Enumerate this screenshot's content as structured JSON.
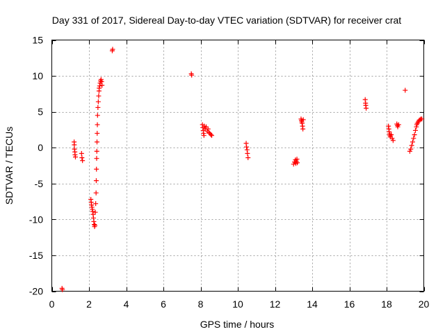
{
  "chart_data": {
    "type": "scatter",
    "title": "Day 331 of 2017, Sidereal Day-to-day VTEC variation (SDTVAR) for receiver crat",
    "xlabel": "GPS time / hours",
    "ylabel": "SDTVAR / TECUs",
    "xlim": [
      0,
      20
    ],
    "ylim": [
      -20,
      15
    ],
    "xticks": [
      0,
      2,
      4,
      6,
      8,
      10,
      12,
      14,
      16,
      18,
      20
    ],
    "yticks": [
      -20,
      -15,
      -10,
      -5,
      0,
      5,
      10,
      15
    ],
    "xtick_labels": [
      "0",
      "2",
      "4",
      "6",
      "8",
      "10",
      "12",
      "14",
      "16",
      "18",
      "20"
    ],
    "ytick_labels": [
      "-20",
      "-15",
      "-10",
      "-5",
      "0",
      "5",
      "10",
      "15"
    ],
    "grid": true,
    "marker": "plus",
    "color": "#ff0000",
    "series": [
      {
        "name": "SDTVAR",
        "points": [
          [
            0.55,
            -19.6
          ],
          [
            0.57,
            -19.8
          ],
          [
            1.2,
            0.8
          ],
          [
            1.21,
            0.4
          ],
          [
            1.22,
            -0.2
          ],
          [
            1.24,
            -0.6
          ],
          [
            1.25,
            -1.0
          ],
          [
            1.27,
            -1.3
          ],
          [
            1.6,
            -0.8
          ],
          [
            1.62,
            -1.4
          ],
          [
            1.65,
            -1.8
          ],
          [
            2.1,
            -7.2
          ],
          [
            2.12,
            -7.6
          ],
          [
            2.14,
            -8.0
          ],
          [
            2.16,
            -8.3
          ],
          [
            2.18,
            -8.6
          ],
          [
            2.2,
            -8.9
          ],
          [
            2.22,
            -9.3
          ],
          [
            2.24,
            -9.8
          ],
          [
            2.26,
            -10.3
          ],
          [
            2.28,
            -10.7
          ],
          [
            2.3,
            -11.0
          ],
          [
            2.32,
            -10.8
          ],
          [
            2.34,
            -9.0
          ],
          [
            2.36,
            -7.8
          ],
          [
            2.38,
            -6.3
          ],
          [
            2.39,
            -4.6
          ],
          [
            2.4,
            -3.0
          ],
          [
            2.41,
            -1.5
          ],
          [
            2.42,
            -0.5
          ],
          [
            2.43,
            0.8
          ],
          [
            2.44,
            2.0
          ],
          [
            2.45,
            3.2
          ],
          [
            2.46,
            4.5
          ],
          [
            2.48,
            5.6
          ],
          [
            2.5,
            6.4
          ],
          [
            2.52,
            7.2
          ],
          [
            2.54,
            7.9
          ],
          [
            2.55,
            8.3
          ],
          [
            2.57,
            8.6
          ],
          [
            2.6,
            9.0
          ],
          [
            2.62,
            9.3
          ],
          [
            2.65,
            9.5
          ],
          [
            2.68,
            9.2
          ],
          [
            2.7,
            8.7
          ],
          [
            3.25,
            13.5
          ],
          [
            3.27,
            13.7
          ],
          [
            7.5,
            10.3
          ],
          [
            7.52,
            10.1
          ],
          [
            8.1,
            3.2
          ],
          [
            8.12,
            2.8
          ],
          [
            8.14,
            2.4
          ],
          [
            8.16,
            2.0
          ],
          [
            8.18,
            1.7
          ],
          [
            8.2,
            3.0
          ],
          [
            8.25,
            2.6
          ],
          [
            8.3,
            2.9
          ],
          [
            8.35,
            2.3
          ],
          [
            8.4,
            2.6
          ],
          [
            8.45,
            2.1
          ],
          [
            8.5,
            2.0
          ],
          [
            8.55,
            1.8
          ],
          [
            8.6,
            1.7
          ],
          [
            10.45,
            0.6
          ],
          [
            10.47,
            0.1
          ],
          [
            10.5,
            -0.3
          ],
          [
            10.52,
            -0.8
          ],
          [
            10.55,
            -1.4
          ],
          [
            13.0,
            -2.3
          ],
          [
            13.05,
            -2.0
          ],
          [
            13.1,
            -1.7
          ],
          [
            13.12,
            -2.2
          ],
          [
            13.15,
            -1.9
          ],
          [
            13.18,
            -1.6
          ],
          [
            13.2,
            -2.1
          ],
          [
            13.4,
            4.0
          ],
          [
            13.42,
            3.8
          ],
          [
            13.44,
            3.6
          ],
          [
            13.46,
            3.4
          ],
          [
            13.48,
            3.0
          ],
          [
            13.5,
            2.6
          ],
          [
            13.52,
            3.9
          ],
          [
            16.85,
            6.7
          ],
          [
            16.87,
            6.2
          ],
          [
            16.88,
            5.9
          ],
          [
            16.9,
            5.5
          ],
          [
            18.1,
            3.0
          ],
          [
            18.12,
            2.6
          ],
          [
            18.14,
            2.2
          ],
          [
            18.16,
            1.9
          ],
          [
            18.18,
            1.7
          ],
          [
            18.2,
            1.5
          ],
          [
            18.25,
            1.8
          ],
          [
            18.3,
            1.3
          ],
          [
            18.35,
            1.0
          ],
          [
            18.55,
            3.3
          ],
          [
            18.58,
            3.1
          ],
          [
            18.6,
            2.9
          ],
          [
            18.65,
            3.2
          ],
          [
            19.0,
            8.0
          ],
          [
            19.25,
            -0.5
          ],
          [
            19.3,
            -0.2
          ],
          [
            19.35,
            0.3
          ],
          [
            19.4,
            0.8
          ],
          [
            19.45,
            1.3
          ],
          [
            19.5,
            1.8
          ],
          [
            19.55,
            2.4
          ],
          [
            19.6,
            2.9
          ],
          [
            19.62,
            3.2
          ],
          [
            19.65,
            3.4
          ],
          [
            19.7,
            3.6
          ],
          [
            19.75,
            3.8
          ],
          [
            19.8,
            3.9
          ],
          [
            19.85,
            4.0
          ],
          [
            19.9,
            4.0
          ]
        ]
      }
    ]
  }
}
